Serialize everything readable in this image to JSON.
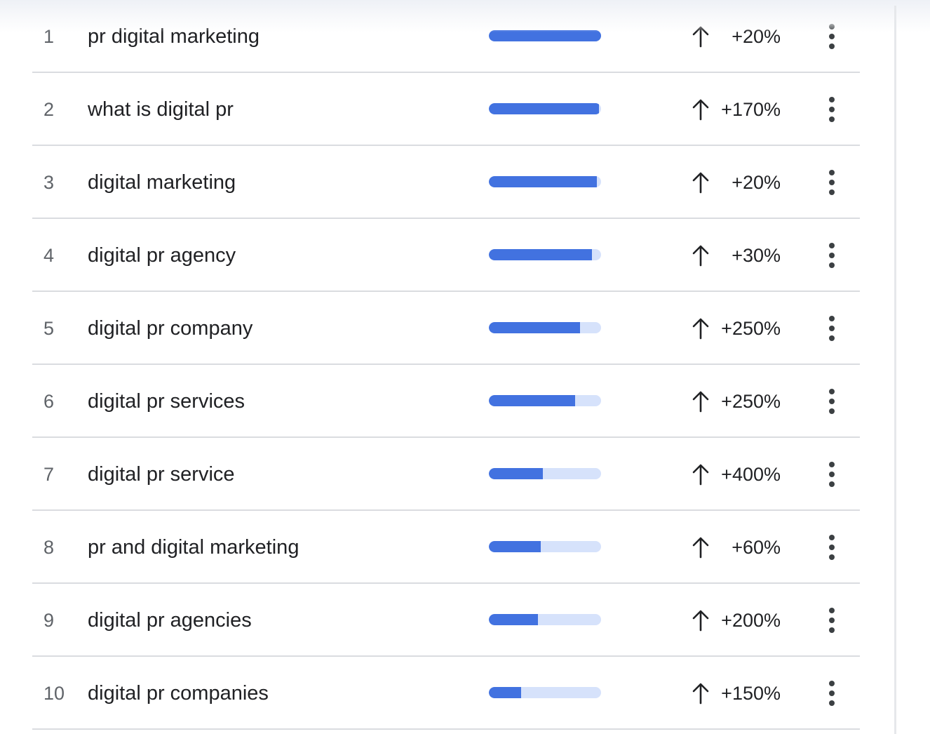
{
  "colors": {
    "bar_fill": "#4272e0",
    "bar_track": "#d6e2fb",
    "divider": "#dadce0",
    "text_primary": "#202124",
    "text_secondary": "#5f6368"
  },
  "icons": {
    "trend": "arrow-up-icon",
    "menu": "more-vert-icon"
  },
  "rows": [
    {
      "rank": "1",
      "term": "pr digital marketing",
      "interest": 1.0,
      "change": "+20%"
    },
    {
      "rank": "2",
      "term": "what is digital pr",
      "interest": 0.98,
      "change": "+170%"
    },
    {
      "rank": "3",
      "term": "digital marketing",
      "interest": 0.96,
      "change": "+20%"
    },
    {
      "rank": "4",
      "term": "digital pr agency",
      "interest": 0.92,
      "change": "+30%"
    },
    {
      "rank": "5",
      "term": "digital pr company",
      "interest": 0.81,
      "change": "+250%"
    },
    {
      "rank": "6",
      "term": "digital pr services",
      "interest": 0.77,
      "change": "+250%"
    },
    {
      "rank": "7",
      "term": "digital pr service",
      "interest": 0.48,
      "change": "+400%"
    },
    {
      "rank": "8",
      "term": "pr and digital marketing",
      "interest": 0.46,
      "change": "+60%"
    },
    {
      "rank": "9",
      "term": "digital pr agencies",
      "interest": 0.44,
      "change": "+200%"
    },
    {
      "rank": "10",
      "term": "digital pr companies",
      "interest": 0.29,
      "change": "+150%"
    }
  ]
}
